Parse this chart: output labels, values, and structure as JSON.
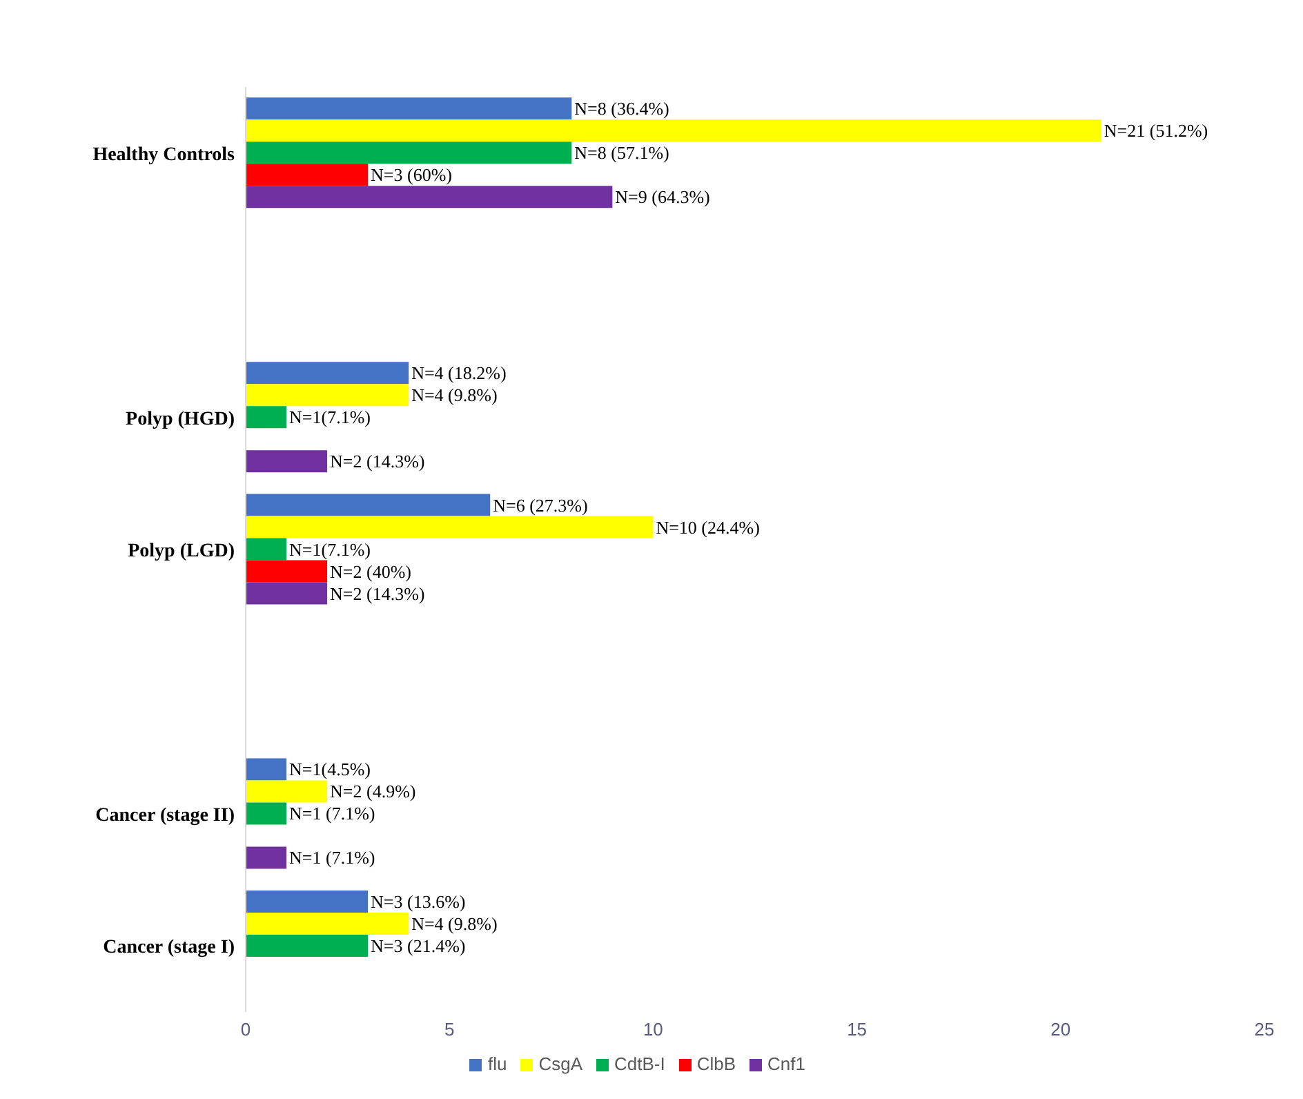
{
  "chart_data": {
    "type": "bar",
    "orientation": "horizontal",
    "categories": [
      "Healthy Controls",
      null,
      "Polyp (HGD)",
      "Polyp (LGD)",
      null,
      "Cancer (stage II)",
      "Cancer (stage I)"
    ],
    "series": [
      {
        "name": "flu",
        "color": "#4472c4",
        "values": [
          8,
          null,
          4,
          6,
          null,
          1,
          3
        ],
        "value_labels": [
          "N=8 (36.4%)",
          null,
          "N=4 (18.2%)",
          "N=6 (27.3%)",
          null,
          "N=1(4.5%)",
          "N=3 (13.6%)"
        ]
      },
      {
        "name": "CsgA",
        "color": "#ffff00",
        "values": [
          21,
          null,
          4,
          10,
          null,
          2,
          4
        ],
        "value_labels": [
          "N=21 (51.2%)",
          null,
          "N=4 (9.8%)",
          "N=10 (24.4%)",
          null,
          "N=2 (4.9%)",
          "N=4 (9.8%)"
        ]
      },
      {
        "name": "CdtB-I",
        "color": "#00b050",
        "values": [
          8,
          null,
          1,
          1,
          null,
          1,
          3
        ],
        "value_labels": [
          "N=8 (57.1%)",
          null,
          "N=1(7.1%)",
          "N=1(7.1%)",
          null,
          "N=1 (7.1%)",
          "N=3 (21.4%)"
        ]
      },
      {
        "name": "ClbB",
        "color": "#ff0000",
        "values": [
          3,
          null,
          null,
          2,
          null,
          null,
          null
        ],
        "value_labels": [
          "N=3 (60%)",
          null,
          null,
          "N=2 (40%)",
          null,
          null,
          null
        ]
      },
      {
        "name": "Cnf1",
        "color": "#7030a0",
        "values": [
          9,
          null,
          2,
          2,
          null,
          1,
          null
        ],
        "value_labels": [
          "N=9 (64.3%)",
          null,
          "N=2 (14.3%)",
          "N=2 (14.3%)",
          null,
          "N=1 (7.1%)",
          null
        ]
      }
    ],
    "xlim": [
      0,
      25
    ],
    "xticks": [
      0,
      5,
      10,
      15,
      20,
      25
    ],
    "grid": false,
    "legend": "bottom"
  }
}
